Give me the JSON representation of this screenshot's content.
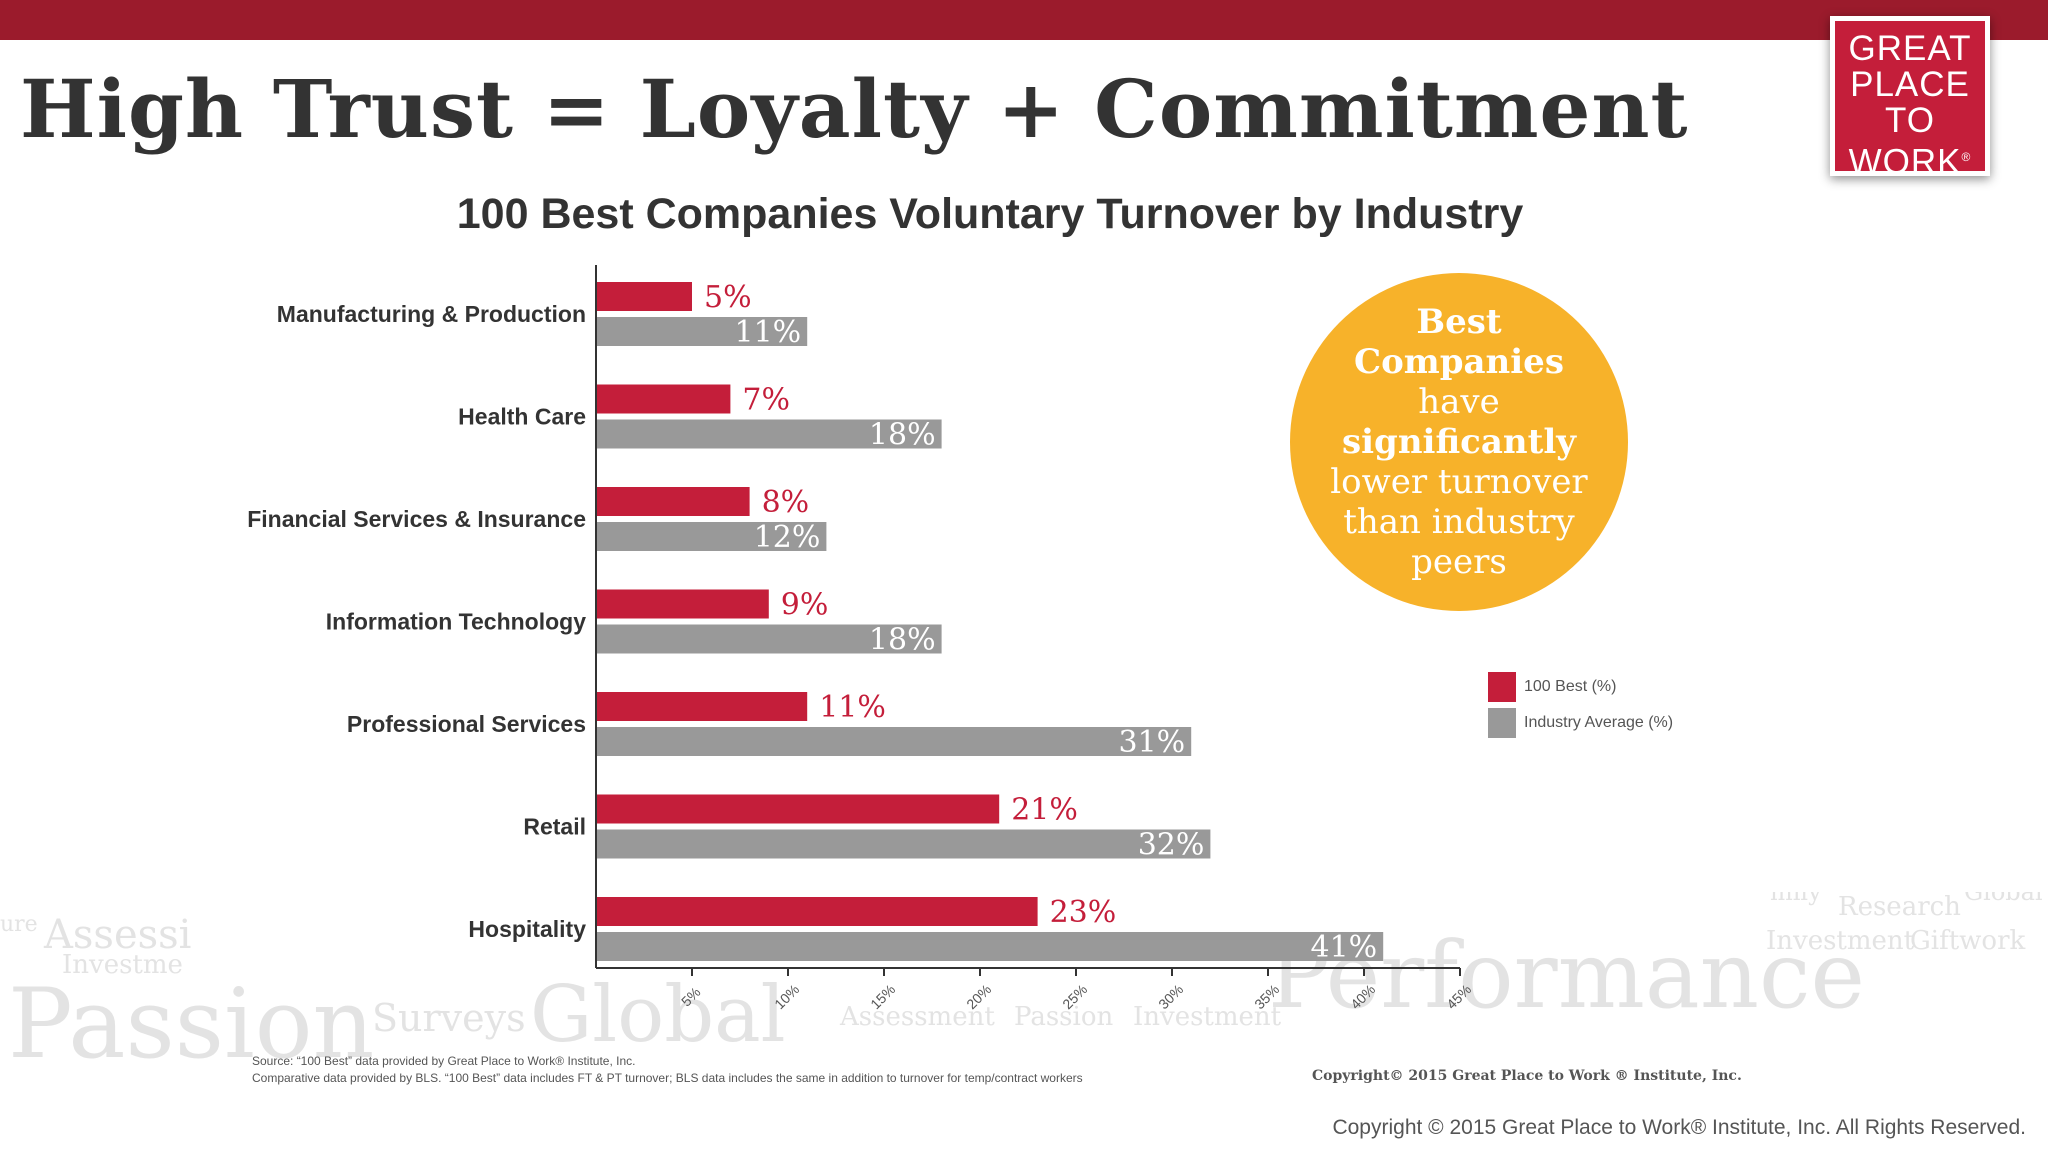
{
  "slide": {
    "title": "High Trust = Loyalty + Commitment"
  },
  "logo": {
    "lines": [
      "GREAT",
      "PLACE",
      "TO",
      "WORK"
    ],
    "registered": "®",
    "color": "#c41e3a"
  },
  "colors": {
    "top_band": "#9b1b2c",
    "best": "#c41e3a",
    "industry": "#999999",
    "callout": "#f7b22a"
  },
  "callout": {
    "lines": [
      {
        "text": "Best",
        "bold": true
      },
      {
        "text": "Companies",
        "bold": true
      },
      {
        "text": "have",
        "bold": false
      },
      {
        "text": "significantly",
        "bold": true
      },
      {
        "text": "lower turnover",
        "bold": false
      },
      {
        "text": "than industry",
        "bold": false
      },
      {
        "text": "peers",
        "bold": false
      }
    ]
  },
  "chart_data": {
    "type": "bar",
    "orientation": "horizontal",
    "title": "100 Best Companies Voluntary Turnover by Industry",
    "categories": [
      "Manufacturing & Production",
      "Health Care",
      "Financial Services & Insurance",
      "Information Technology",
      "Professional Services",
      "Retail",
      "Hospitality"
    ],
    "series": [
      {
        "name": "100 Best (%)",
        "values": [
          5,
          7,
          8,
          9,
          11,
          21,
          23
        ],
        "labels": [
          "5%",
          "7%",
          "8%",
          "9%",
          "11%",
          "21%",
          "23%"
        ]
      },
      {
        "name": "Industry Average (%)",
        "values": [
          11,
          18,
          12,
          18,
          31,
          32,
          41
        ],
        "labels": [
          "11%",
          "18%",
          "12%",
          "18%",
          "31%",
          "32%",
          "41%"
        ]
      }
    ],
    "xlim": [
      0,
      45
    ],
    "xticks": [
      5,
      10,
      15,
      20,
      25,
      30,
      35,
      40,
      45
    ],
    "xtick_labels": [
      "5%",
      "10%",
      "15%",
      "20%",
      "25%",
      "30%",
      "35%",
      "40%",
      "45%"
    ],
    "xlabel": "",
    "ylabel": "",
    "legend_position": "right",
    "grid": false
  },
  "source": {
    "line1": "Source: “100 Best” data provided by Great Place to Work® Institute, Inc.",
    "line2": "Comparative data provided by BLS. “100 Best” data includes FT & PT turnover; BLS data includes the same in addition to turnover for temp/contract workers"
  },
  "copyright_small": "Copyright© 2015 Great Place to Work ® Institute, Inc.",
  "copyright_main": "Copyright © 2015 Great Place to Work® Institute, Inc. All Rights Reserved.",
  "background_words": [
    "Passion",
    "Surveys",
    "Global",
    "Assessment",
    "Passion",
    "Investment",
    "Performance",
    "Assessi",
    "Investme",
    "Research",
    "Investment",
    "Giftwork",
    "Global",
    "mily",
    "ure"
  ]
}
